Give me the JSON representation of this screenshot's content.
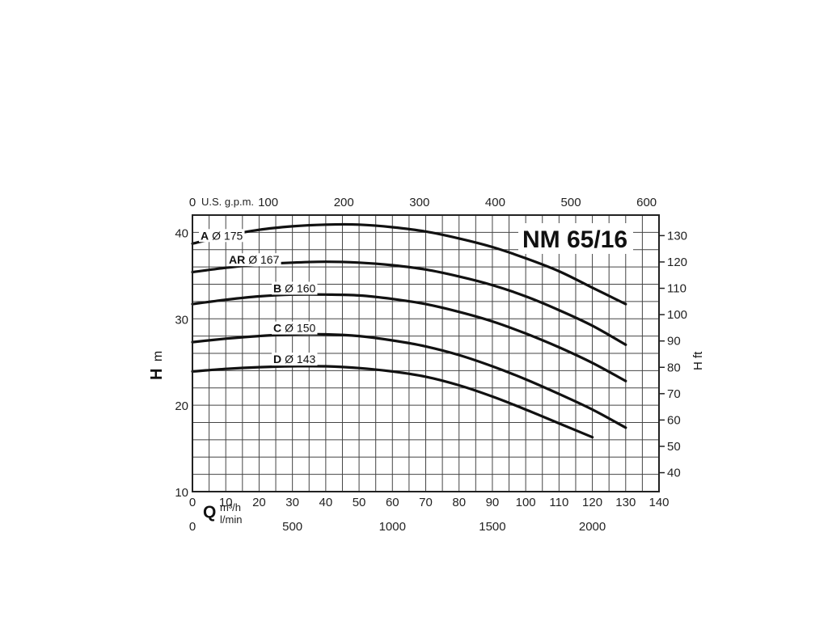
{
  "chart_data": {
    "type": "line",
    "title": "NM 65/16",
    "x": {
      "label": "Q",
      "unit_primary": "m³/h",
      "unit_secondary": "l/min",
      "range": [
        0,
        140
      ],
      "ticks": [
        0,
        10,
        20,
        30,
        40,
        50,
        60,
        70,
        80,
        90,
        100,
        110,
        120,
        130,
        140
      ]
    },
    "x_secondary": {
      "unit": "l/min",
      "ticks": [
        0,
        500,
        1000,
        1500,
        2000
      ]
    },
    "x_top": {
      "unit": "U.S. g.p.m.",
      "ticks": [
        0,
        100,
        200,
        300,
        400,
        500,
        600
      ]
    },
    "y": {
      "label": "H",
      "unit": "m",
      "range": [
        10,
        42
      ],
      "ticks": [
        10,
        20,
        30,
        40
      ]
    },
    "y_right": {
      "label": "H ft",
      "ticks": [
        40,
        50,
        60,
        70,
        80,
        90,
        100,
        110,
        120,
        130
      ]
    },
    "grid": true,
    "series": [
      {
        "name": "A",
        "diameter": "Ø 175",
        "x": [
          0,
          10,
          20,
          30,
          40,
          50,
          60,
          70,
          80,
          90,
          100,
          110,
          120,
          130
        ],
        "y": [
          38.7,
          39.6,
          40.3,
          40.7,
          40.9,
          40.9,
          40.6,
          40.1,
          39.3,
          38.3,
          37.0,
          35.5,
          33.6,
          31.7
        ]
      },
      {
        "name": "AR",
        "diameter": "Ø 167",
        "x": [
          0,
          10,
          20,
          30,
          40,
          50,
          60,
          70,
          80,
          90,
          100,
          110,
          120,
          130
        ],
        "y": [
          35.4,
          35.9,
          36.3,
          36.5,
          36.6,
          36.5,
          36.2,
          35.7,
          34.9,
          33.9,
          32.6,
          31.0,
          29.2,
          27.0
        ]
      },
      {
        "name": "B",
        "diameter": "Ø 160",
        "x": [
          0,
          10,
          20,
          30,
          40,
          50,
          60,
          70,
          80,
          90,
          100,
          110,
          120,
          130
        ],
        "y": [
          31.7,
          32.2,
          32.6,
          32.8,
          32.8,
          32.7,
          32.3,
          31.7,
          30.8,
          29.7,
          28.3,
          26.7,
          24.9,
          22.8
        ]
      },
      {
        "name": "C",
        "diameter": "Ø 150",
        "x": [
          0,
          10,
          20,
          30,
          40,
          50,
          60,
          70,
          80,
          90,
          100,
          110,
          120,
          130
        ],
        "y": [
          27.3,
          27.7,
          28.0,
          28.2,
          28.2,
          28.0,
          27.5,
          26.8,
          25.8,
          24.5,
          23.0,
          21.3,
          19.5,
          17.4
        ]
      },
      {
        "name": "D",
        "diameter": "Ø 143",
        "x": [
          0,
          10,
          20,
          30,
          40,
          50,
          60,
          70,
          80,
          90,
          100,
          110,
          120
        ],
        "y": [
          23.9,
          24.2,
          24.4,
          24.5,
          24.5,
          24.3,
          23.9,
          23.3,
          22.3,
          21.0,
          19.5,
          17.9,
          16.3
        ]
      }
    ]
  }
}
